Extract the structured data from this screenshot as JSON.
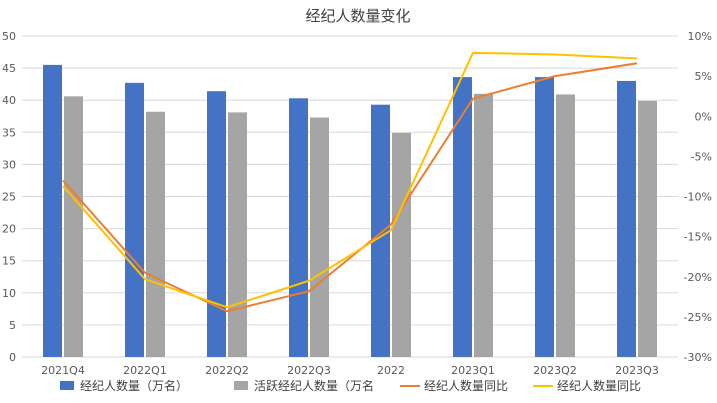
{
  "chart_data": {
    "type": "bar",
    "title": "经纪人数量变化",
    "categories": [
      "2021Q4",
      "2022Q1",
      "2022Q2",
      "2022Q3",
      "2022",
      "2023Q1",
      "2023Q2",
      "2023Q3"
    ],
    "y_left": {
      "min": 0,
      "max": 50,
      "step": 5,
      "ticks": [
        "0",
        "5",
        "10",
        "15",
        "20",
        "25",
        "30",
        "35",
        "40",
        "45",
        "50"
      ]
    },
    "y_right": {
      "min": -30,
      "max": 10,
      "step": 5,
      "ticks": [
        "-30%",
        "-25%",
        "-20%",
        "-15%",
        "-10%",
        "-5%",
        "0%",
        "5%",
        "10%"
      ]
    },
    "grid": true,
    "legend_position": "bottom",
    "series": [
      {
        "name": "经纪人数量（万名）",
        "legend_label": "经纪人数量（万名）",
        "kind": "bar",
        "axis": "left",
        "color": "#4472C4",
        "values": [
          45.5,
          42.7,
          41.4,
          40.3,
          39.3,
          43.6,
          43.6,
          43.0
        ]
      },
      {
        "name": "活跃经纪人数量（万名",
        "legend_label": "活跃经纪人数量（万名",
        "kind": "bar",
        "axis": "left",
        "color": "#A5A5A5",
        "values": [
          40.6,
          38.2,
          38.1,
          37.3,
          34.9,
          41.0,
          40.9,
          39.9
        ]
      },
      {
        "name": "经纪人数量同比",
        "legend_label": "经纪人数量同比",
        "kind": "line",
        "axis": "right",
        "color": "#ED7D31",
        "values": [
          -8.0,
          -19.5,
          -24.3,
          -21.8,
          -13.5,
          2.2,
          5.0,
          6.6
        ]
      },
      {
        "name": "经纪人数量同比",
        "legend_label": "经纪人数量同比",
        "kind": "line",
        "axis": "right",
        "color": "#FFC000",
        "values": [
          -8.7,
          -20.3,
          -23.8,
          -20.5,
          -14.2,
          7.9,
          7.7,
          7.2
        ]
      }
    ]
  }
}
